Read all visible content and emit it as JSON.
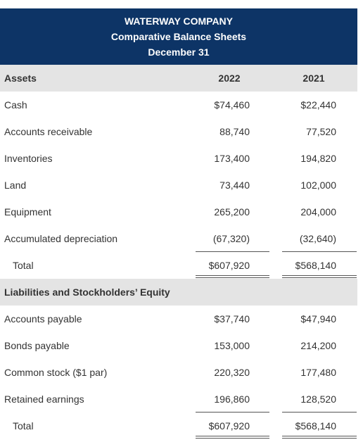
{
  "header": {
    "company": "WATERWAY COMPANY",
    "title": "Comparative Balance Sheets",
    "date": "December 31"
  },
  "columns": {
    "y1": "2022",
    "y2": "2021"
  },
  "assets": {
    "heading": "Assets",
    "rows": [
      {
        "label": "Cash",
        "y1": "$74,460",
        "y2": "$22,440"
      },
      {
        "label": "Accounts receivable",
        "y1": "88,740",
        "y2": "77,520"
      },
      {
        "label": "Inventories",
        "y1": "173,400",
        "y2": "194,820"
      },
      {
        "label": "Land",
        "y1": "73,440",
        "y2": "102,000"
      },
      {
        "label": "Equipment",
        "y1": "265,200",
        "y2": "204,000"
      },
      {
        "label": "Accumulated depreciation",
        "y1": "(67,320)",
        "y2": "(32,640)"
      }
    ],
    "total": {
      "label": "Total",
      "y1": "$607,920",
      "y2": "$568,140"
    }
  },
  "liabilities": {
    "heading": "Liabilities and Stockholders’ Equity",
    "rows": [
      {
        "label": "Accounts payable",
        "y1": "$37,740",
        "y2": "$47,940"
      },
      {
        "label": "Bonds payable",
        "y1": "153,000",
        "y2": "214,200"
      },
      {
        "label": "Common stock ($1 par)",
        "y1": "220,320",
        "y2": "177,480"
      },
      {
        "label": "Retained earnings",
        "y1": "196,860",
        "y2": "128,520"
      }
    ],
    "total": {
      "label": "Total",
      "y1": "$607,920",
      "y2": "$568,140"
    }
  }
}
